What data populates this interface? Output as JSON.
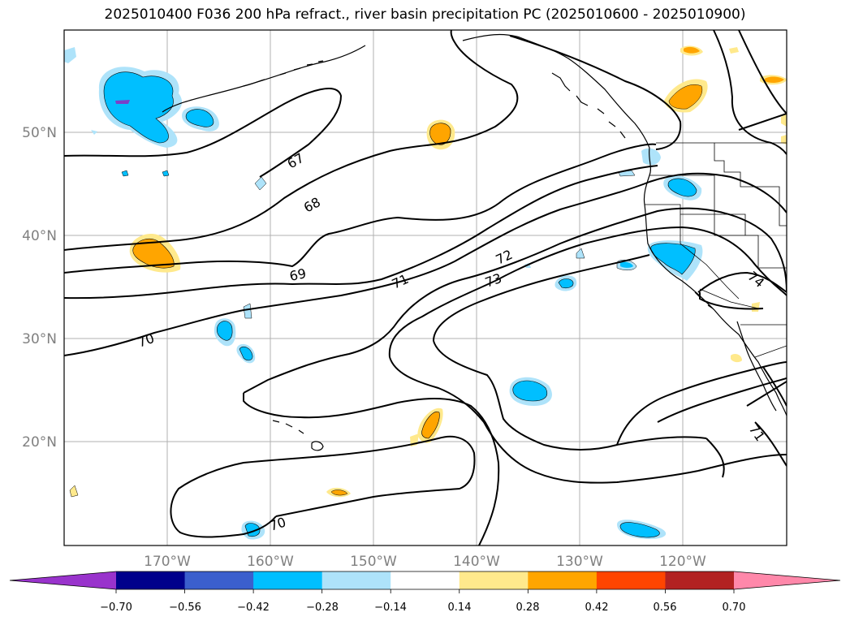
{
  "title": "2025010400 F036 200 hPa refract., river basin precipitation PC (2025010600 - 2025010900)",
  "lon_labels": [
    "170°W",
    "160°W",
    "150°W",
    "140°W",
    "130°W",
    "120°W"
  ],
  "lat_labels": [
    "50°N",
    "40°N",
    "30°N",
    "20°N"
  ],
  "contour_labels": [
    "67",
    "68",
    "69",
    "70",
    "71",
    "72",
    "73",
    "70",
    "71",
    "74"
  ],
  "colorbar": {
    "ticks": [
      "−0.70",
      "−0.56",
      "−0.42",
      "−0.28",
      "−0.14",
      "0.14",
      "0.28",
      "0.42",
      "0.56",
      "0.70"
    ],
    "colors": [
      "#9933cc",
      "#00008b",
      "#3b5fcd",
      "#00bfff",
      "#aee3fa",
      "#ffffff",
      "#ffe98c",
      "#ffa500",
      "#ff4500",
      "#b22222",
      "#ff88aa"
    ]
  },
  "colors": {
    "negative_light": "#aee3fa",
    "negative_mid": "#00bfff",
    "negative_strong": "#7b3fc8",
    "positive_light": "#ffe98c",
    "positive_mid": "#ffa500"
  }
}
